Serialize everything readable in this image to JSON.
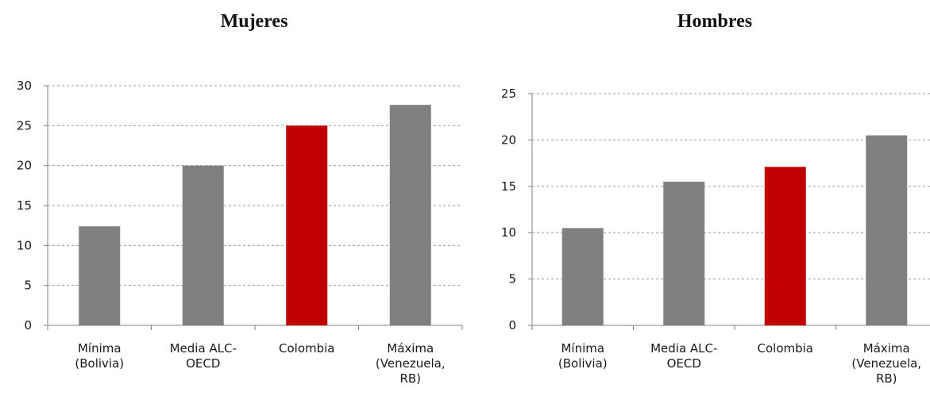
{
  "chart_data": [
    {
      "type": "bar",
      "title": "Mujeres",
      "categories": [
        [
          "Mínima",
          "(Bolivia)"
        ],
        [
          "Media ALC-",
          "OECD"
        ],
        [
          "Colombia"
        ],
        [
          "Máxima",
          "(Venezuela,",
          "RB)"
        ]
      ],
      "values": [
        12.4,
        20.0,
        25.0,
        27.6
      ],
      "colors": [
        "#808080",
        "#808080",
        "#c00000",
        "#808080"
      ],
      "ylim": [
        0,
        30
      ],
      "yticks": [
        0,
        5,
        10,
        15,
        20,
        25,
        30
      ],
      "grid": true,
      "xlabel": "",
      "ylabel": ""
    },
    {
      "type": "bar",
      "title": "Hombres",
      "categories": [
        [
          "Mínima",
          "(Bolivia)"
        ],
        [
          "Media ALC-",
          "OECD"
        ],
        [
          "Colombia"
        ],
        [
          "Máxima",
          "(Venezuela,",
          "RB)"
        ]
      ],
      "values": [
        10.5,
        15.5,
        17.1,
        20.5
      ],
      "colors": [
        "#808080",
        "#808080",
        "#c00000",
        "#808080"
      ],
      "ylim": [
        0,
        25
      ],
      "yticks": [
        0,
        5,
        10,
        15,
        20,
        25
      ],
      "grid": true,
      "xlabel": "",
      "ylabel": ""
    }
  ]
}
